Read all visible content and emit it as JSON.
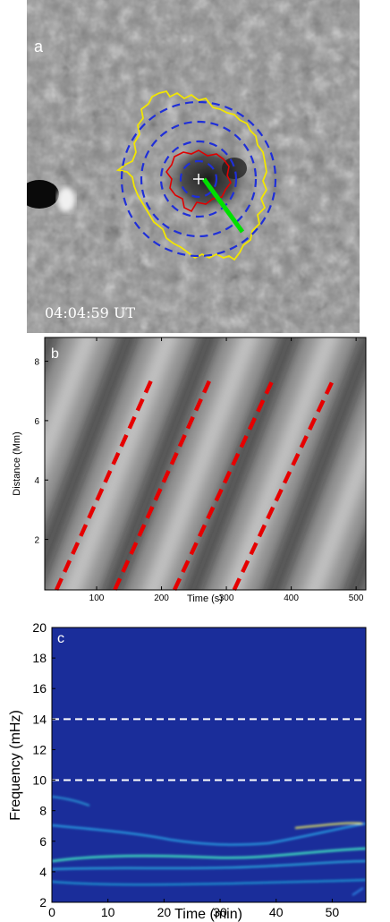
{
  "panel_a": {
    "label": "a",
    "timestamp": "04:04:59 UT"
  },
  "chart_data": [
    {
      "panel": "b",
      "type": "heatmap",
      "label": "b",
      "xlabel": "Time (s)",
      "ylabel": "Distance (Mm)",
      "xlim": [
        20,
        515
      ],
      "ylim": [
        0.3,
        8.8
      ],
      "xticks": [
        100,
        200,
        300,
        400,
        500
      ],
      "yticks": [
        2,
        4,
        6,
        8
      ],
      "series": [
        {
          "x": [
            38,
            185
          ],
          "y": [
            0.3,
            7.4
          ]
        },
        {
          "x": [
            128,
            275
          ],
          "y": [
            0.3,
            7.4
          ]
        },
        {
          "x": [
            220,
            372
          ],
          "y": [
            0.3,
            7.4
          ]
        },
        {
          "x": [
            312,
            465
          ],
          "y": [
            0.3,
            7.4
          ]
        }
      ],
      "line_color": "#e60000"
    },
    {
      "panel": "c",
      "type": "heatmap",
      "label": "c",
      "xlabel": "Time (min)",
      "ylabel": "Frequency (mHz)",
      "xlim": [
        0,
        56
      ],
      "ylim": [
        2,
        20
      ],
      "xticks": [
        0,
        10,
        20,
        30,
        40,
        50
      ],
      "yticks": [
        2,
        4,
        6,
        8,
        10,
        12,
        14,
        16,
        18,
        20
      ],
      "hlines": [
        10,
        14
      ],
      "hline_color": "#ffffff",
      "background_color": "#1a2d9a"
    }
  ]
}
